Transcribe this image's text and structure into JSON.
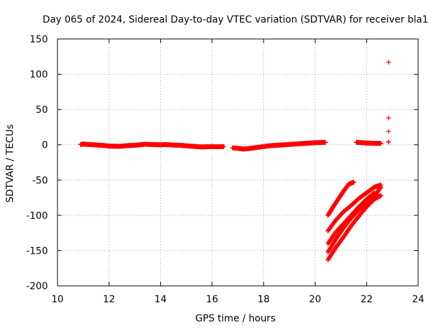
{
  "chart_data": {
    "type": "scatter",
    "title": "Day 065 of 2024, Sidereal Day-to-day VTEC variation (SDTVAR) for receiver bla1",
    "xlabel": "GPS time / hours",
    "ylabel": "SDTVAR / TECUs",
    "xlim": [
      10,
      24
    ],
    "ylim": [
      -200,
      150
    ],
    "xticks": [
      10,
      12,
      14,
      16,
      18,
      20,
      22,
      24
    ],
    "yticks": [
      -200,
      -150,
      -100,
      -50,
      0,
      50,
      100,
      150
    ],
    "grid": true,
    "marker": "+",
    "color": "#ff0000",
    "series": [
      {
        "points": [
          [
            10.9,
            0.5
          ],
          [
            11.0,
            1.0
          ],
          [
            11.2,
            0.5
          ],
          [
            11.4,
            0.0
          ],
          [
            11.6,
            -0.5
          ],
          [
            11.8,
            -1.0
          ],
          [
            12.0,
            -1.8
          ],
          [
            12.2,
            -2.0
          ],
          [
            12.4,
            -2.2
          ],
          [
            12.6,
            -1.5
          ],
          [
            12.8,
            -1.0
          ],
          [
            13.0,
            -0.8
          ],
          [
            13.2,
            0.0
          ],
          [
            13.4,
            0.8
          ],
          [
            13.6,
            0.5
          ],
          [
            13.8,
            0.2
          ],
          [
            14.0,
            0.0
          ],
          [
            14.2,
            0.3
          ],
          [
            14.4,
            -0.2
          ],
          [
            14.6,
            -0.5
          ],
          [
            14.8,
            -0.8
          ],
          [
            15.0,
            -1.5
          ],
          [
            15.2,
            -2.0
          ],
          [
            15.4,
            -2.5
          ],
          [
            15.6,
            -3.0
          ],
          [
            15.8,
            -2.8
          ],
          [
            16.0,
            -2.5
          ],
          [
            16.2,
            -2.8
          ],
          [
            16.45,
            -2.5
          ],
          [
            16.8,
            -4.5
          ],
          [
            17.0,
            -5.0
          ],
          [
            17.2,
            -6.0
          ],
          [
            17.4,
            -5.5
          ],
          [
            17.6,
            -4.5
          ],
          [
            17.8,
            -3.5
          ],
          [
            18.0,
            -2.5
          ],
          [
            18.2,
            -1.5
          ],
          [
            18.4,
            -1.0
          ],
          [
            18.6,
            -0.5
          ],
          [
            18.8,
            0.0
          ],
          [
            19.0,
            0.5
          ],
          [
            19.2,
            1.0
          ],
          [
            19.4,
            1.5
          ],
          [
            19.6,
            2.0
          ],
          [
            19.8,
            2.5
          ],
          [
            20.0,
            3.0
          ],
          [
            20.2,
            3.2
          ],
          [
            20.4,
            3.5
          ],
          [
            21.6,
            3.5
          ],
          [
            21.8,
            3.0
          ],
          [
            22.0,
            2.5
          ],
          [
            22.2,
            2.2
          ],
          [
            22.4,
            2.0
          ],
          [
            22.55,
            2.0
          ],
          [
            22.85,
            117
          ],
          [
            22.85,
            38
          ],
          [
            22.85,
            19
          ],
          [
            22.85,
            4
          ],
          [
            20.5,
            -100
          ],
          [
            20.7,
            -88
          ],
          [
            20.9,
            -77
          ],
          [
            21.1,
            -66
          ],
          [
            21.3,
            -56
          ],
          [
            21.5,
            -53
          ],
          [
            20.5,
            -122
          ],
          [
            20.8,
            -107
          ],
          [
            21.1,
            -95
          ],
          [
            21.4,
            -86
          ],
          [
            21.7,
            -76
          ],
          [
            22.0,
            -68
          ],
          [
            22.3,
            -60
          ],
          [
            22.55,
            -57
          ],
          [
            20.5,
            -140
          ],
          [
            20.8,
            -124
          ],
          [
            21.1,
            -112
          ],
          [
            21.4,
            -100
          ],
          [
            21.7,
            -88
          ],
          [
            22.0,
            -77
          ],
          [
            22.3,
            -68
          ],
          [
            20.5,
            -152
          ],
          [
            20.8,
            -134
          ],
          [
            21.1,
            -118
          ],
          [
            21.4,
            -104
          ],
          [
            21.7,
            -92
          ],
          [
            22.0,
            -82
          ],
          [
            22.3,
            -73
          ],
          [
            22.55,
            -60
          ],
          [
            20.5,
            -163
          ],
          [
            20.8,
            -146
          ],
          [
            21.1,
            -131
          ],
          [
            21.4,
            -115
          ],
          [
            21.7,
            -101
          ],
          [
            22.0,
            -88
          ],
          [
            22.3,
            -77
          ],
          [
            22.55,
            -72
          ]
        ]
      }
    ]
  }
}
